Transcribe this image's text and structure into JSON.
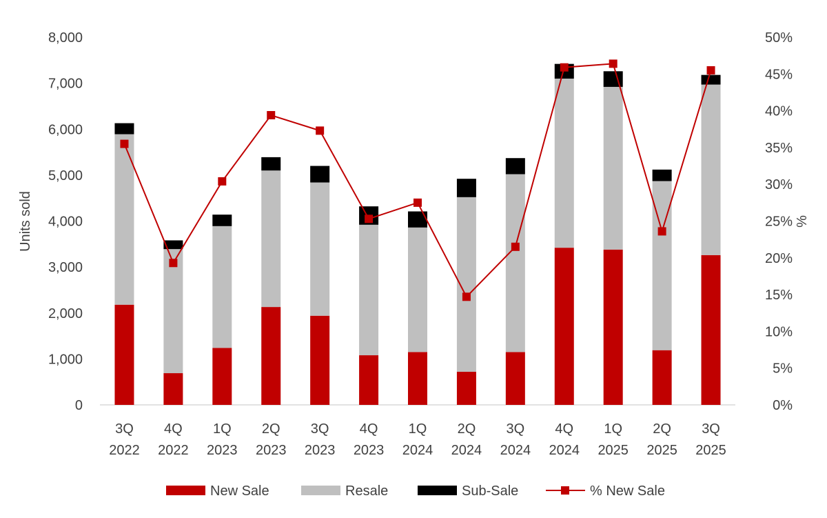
{
  "chart_data": {
    "type": "bar",
    "stacked": true,
    "categories": [
      [
        "3Q",
        "2022"
      ],
      [
        "4Q",
        "2022"
      ],
      [
        "1Q",
        "2023"
      ],
      [
        "2Q",
        "2023"
      ],
      [
        "3Q",
        "2023"
      ],
      [
        "4Q",
        "2023"
      ],
      [
        "1Q",
        "2024"
      ],
      [
        "2Q",
        "2024"
      ],
      [
        "3Q",
        "2024"
      ],
      [
        "4Q",
        "2024"
      ],
      [
        "1Q",
        "2025"
      ],
      [
        "2Q",
        "2025"
      ],
      [
        "3Q",
        "2025"
      ]
    ],
    "series": [
      {
        "name": "New Sale",
        "kind": "bar",
        "axis": "left",
        "color": "#c00000",
        "values": [
          2180,
          690,
          1240,
          2130,
          1940,
          1080,
          1150,
          720,
          1150,
          3420,
          3380,
          1190,
          3260
        ]
      },
      {
        "name": "Resale",
        "kind": "bar",
        "axis": "left",
        "color": "#bfbfbf",
        "values": [
          3710,
          2700,
          2650,
          2970,
          2900,
          2840,
          2710,
          3800,
          3870,
          3680,
          3540,
          3680,
          3710
        ]
      },
      {
        "name": "Sub-Sale",
        "kind": "bar",
        "axis": "left",
        "color": "#000000",
        "values": [
          240,
          190,
          250,
          290,
          360,
          400,
          350,
          400,
          350,
          320,
          340,
          250,
          210
        ]
      },
      {
        "name": "% New Sale",
        "kind": "line",
        "axis": "right",
        "color": "#c00000",
        "values": [
          35.5,
          19.3,
          30.4,
          39.4,
          37.3,
          25.3,
          27.5,
          14.7,
          21.5,
          45.9,
          46.4,
          23.6,
          45.5
        ]
      }
    ],
    "ylabel": "Units sold",
    "y2label": "%",
    "ylim": [
      0,
      8000
    ],
    "yticks": [
      "0",
      "1,000",
      "2,000",
      "3,000",
      "4,000",
      "5,000",
      "6,000",
      "7,000",
      "8,000"
    ],
    "y2lim": [
      0,
      50
    ],
    "y2ticks": [
      "0%",
      "5%",
      "10%",
      "15%",
      "20%",
      "25%",
      "30%",
      "35%",
      "40%",
      "45%",
      "50%"
    ],
    "grid": false,
    "legend": "bottom"
  }
}
